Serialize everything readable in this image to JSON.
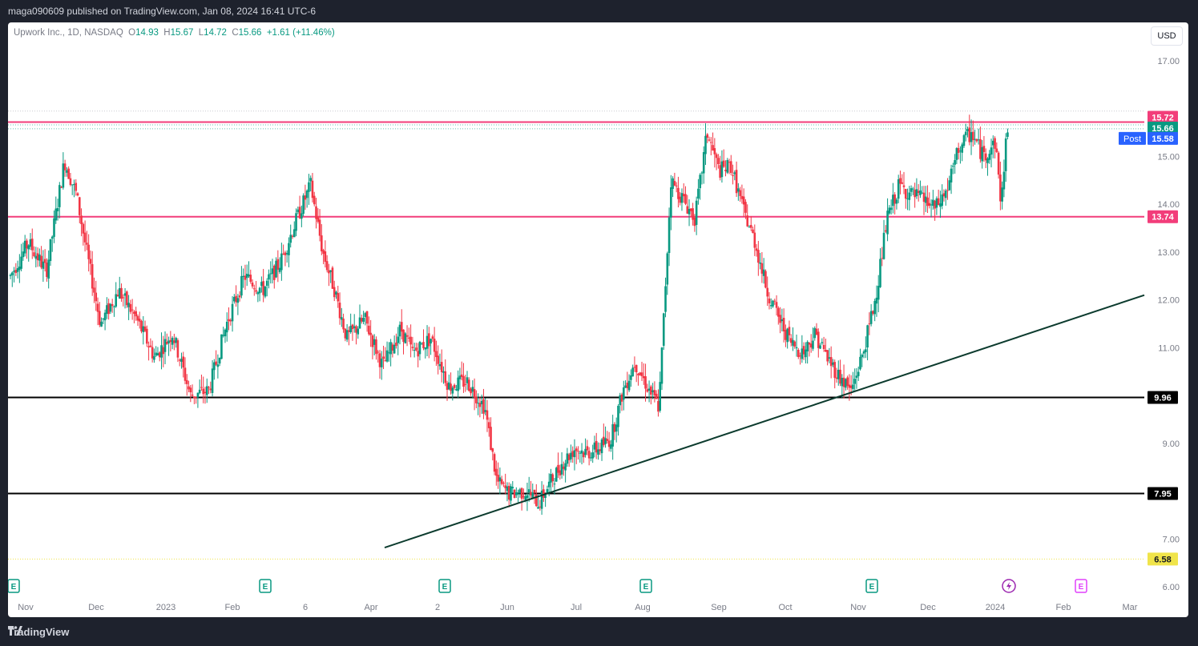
{
  "header": {
    "published": "maga090609 published on TradingView.com, Jan 08, 2024 16:41 UTC-6"
  },
  "legend": {
    "symbol": "Upwork Inc., 1D, NASDAQ",
    "o_label": "O",
    "o": "14.93",
    "h_label": "H",
    "h": "15.67",
    "l_label": "L",
    "l": "14.72",
    "c_label": "C",
    "c": "15.66",
    "change": "+1.61 (+11.46%)"
  },
  "currency": "USD",
  "footer": {
    "brand": "TradingView"
  },
  "colors": {
    "up": "#089981",
    "down": "#f23645",
    "pink_line": "#f23d7a",
    "trend": "#0c3b2e",
    "black": "#000000",
    "yellow": "#f0e44a",
    "post": "#2962ff"
  },
  "chart_data": {
    "type": "candlestick",
    "symbol": "UPWK",
    "interval": "1D",
    "y_ticks": [
      "17.00",
      "15.00",
      "14.00",
      "13.00",
      "12.00",
      "11.00",
      "9.00",
      "7.00",
      "6.00"
    ],
    "x_ticks": [
      "Nov",
      "Dec",
      "2023",
      "Feb",
      "6",
      "Apr",
      "2",
      "Jun",
      "Jul",
      "Aug",
      "Sep",
      "Oct",
      "Nov",
      "Dec",
      "2024",
      "Feb",
      "Mar"
    ],
    "ylim": [
      5.9,
      17.4
    ],
    "price_labels": [
      {
        "value": "15.72",
        "kind": "pink"
      },
      {
        "value": "15.66",
        "kind": "last"
      },
      {
        "value": "15.58",
        "kind": "post",
        "tag": "Post"
      },
      {
        "value": "13.74",
        "kind": "pink"
      },
      {
        "value": "9.96",
        "kind": "black"
      },
      {
        "value": "7.95",
        "kind": "black"
      },
      {
        "value": "6.58",
        "kind": "yellow"
      }
    ],
    "horizontal_lines": [
      {
        "y": 15.72,
        "color": "pink"
      },
      {
        "y": 13.74,
        "color": "pink"
      },
      {
        "y": 9.96,
        "color": "black"
      },
      {
        "y": 7.95,
        "color": "black"
      },
      {
        "y": 6.58,
        "color": "yellow",
        "style": "dotted"
      }
    ],
    "trendline": [
      {
        "date": "2023-03-28",
        "y": 6.82
      },
      {
        "date": "2024-03-05",
        "y": 12.1
      }
    ],
    "events": [
      {
        "date": "2022-11-01",
        "type": "E"
      },
      {
        "date": "2023-02-15",
        "type": "E"
      },
      {
        "date": "2023-05-03",
        "type": "E"
      },
      {
        "date": "2023-08-02",
        "type": "E"
      },
      {
        "date": "2023-11-01",
        "type": "E"
      },
      {
        "date": "2024-01-10",
        "type": "dividend"
      },
      {
        "date": "2024-02-08",
        "type": "E"
      }
    ],
    "series_anchors": [
      [
        0,
        12.5
      ],
      [
        3,
        13.2
      ],
      [
        6,
        12.6
      ],
      [
        9,
        14.9
      ],
      [
        11,
        14.2
      ],
      [
        13,
        12.8
      ],
      [
        15,
        11.5
      ],
      [
        18,
        12.2
      ],
      [
        21,
        11.6
      ],
      [
        24,
        10.8
      ],
      [
        27,
        11.3
      ],
      [
        30,
        10.0
      ],
      [
        33,
        10.1
      ],
      [
        36,
        11.5
      ],
      [
        39,
        12.5
      ],
      [
        42,
        12.2
      ],
      [
        45,
        12.8
      ],
      [
        48,
        13.8
      ],
      [
        50,
        14.4
      ],
      [
        52,
        13.0
      ],
      [
        54,
        12.2
      ],
      [
        56,
        11.2
      ],
      [
        59,
        11.6
      ],
      [
        62,
        10.6
      ],
      [
        65,
        11.4
      ],
      [
        67,
        10.9
      ],
      [
        70,
        11.2
      ],
      [
        73,
        10.2
      ],
      [
        76,
        10.3
      ],
      [
        79,
        9.75
      ],
      [
        81,
        8.2
      ],
      [
        83,
        7.95
      ],
      [
        86,
        8.0
      ],
      [
        88,
        7.75
      ],
      [
        90,
        8.2
      ],
      [
        92,
        8.6
      ],
      [
        94,
        8.9
      ],
      [
        96,
        8.8
      ],
      [
        98,
        8.9
      ],
      [
        100,
        9.1
      ],
      [
        102,
        10.1
      ],
      [
        104,
        10.7
      ],
      [
        106,
        10.2
      ],
      [
        108,
        9.75
      ],
      [
        110,
        14.5
      ],
      [
        112,
        14.1
      ],
      [
        114,
        13.7
      ],
      [
        116,
        15.5
      ],
      [
        118,
        14.7
      ],
      [
        120,
        14.8
      ],
      [
        122,
        13.9
      ],
      [
        124,
        13.2
      ],
      [
        126,
        12.2
      ],
      [
        128,
        11.6
      ],
      [
        130,
        11.1
      ],
      [
        132,
        10.9
      ],
      [
        134,
        11.3
      ],
      [
        136,
        10.8
      ],
      [
        138,
        10.4
      ],
      [
        140,
        10.1
      ],
      [
        142,
        10.9
      ],
      [
        144,
        12.0
      ],
      [
        146,
        13.7
      ],
      [
        148,
        14.4
      ],
      [
        150,
        14.2
      ],
      [
        152,
        14.1
      ],
      [
        154,
        13.9
      ],
      [
        156,
        14.3
      ],
      [
        158,
        15.2
      ],
      [
        160,
        15.5
      ],
      [
        162,
        15.0
      ],
      [
        164,
        15.3
      ],
      [
        165,
        14.0
      ],
      [
        166,
        15.66
      ]
    ]
  }
}
